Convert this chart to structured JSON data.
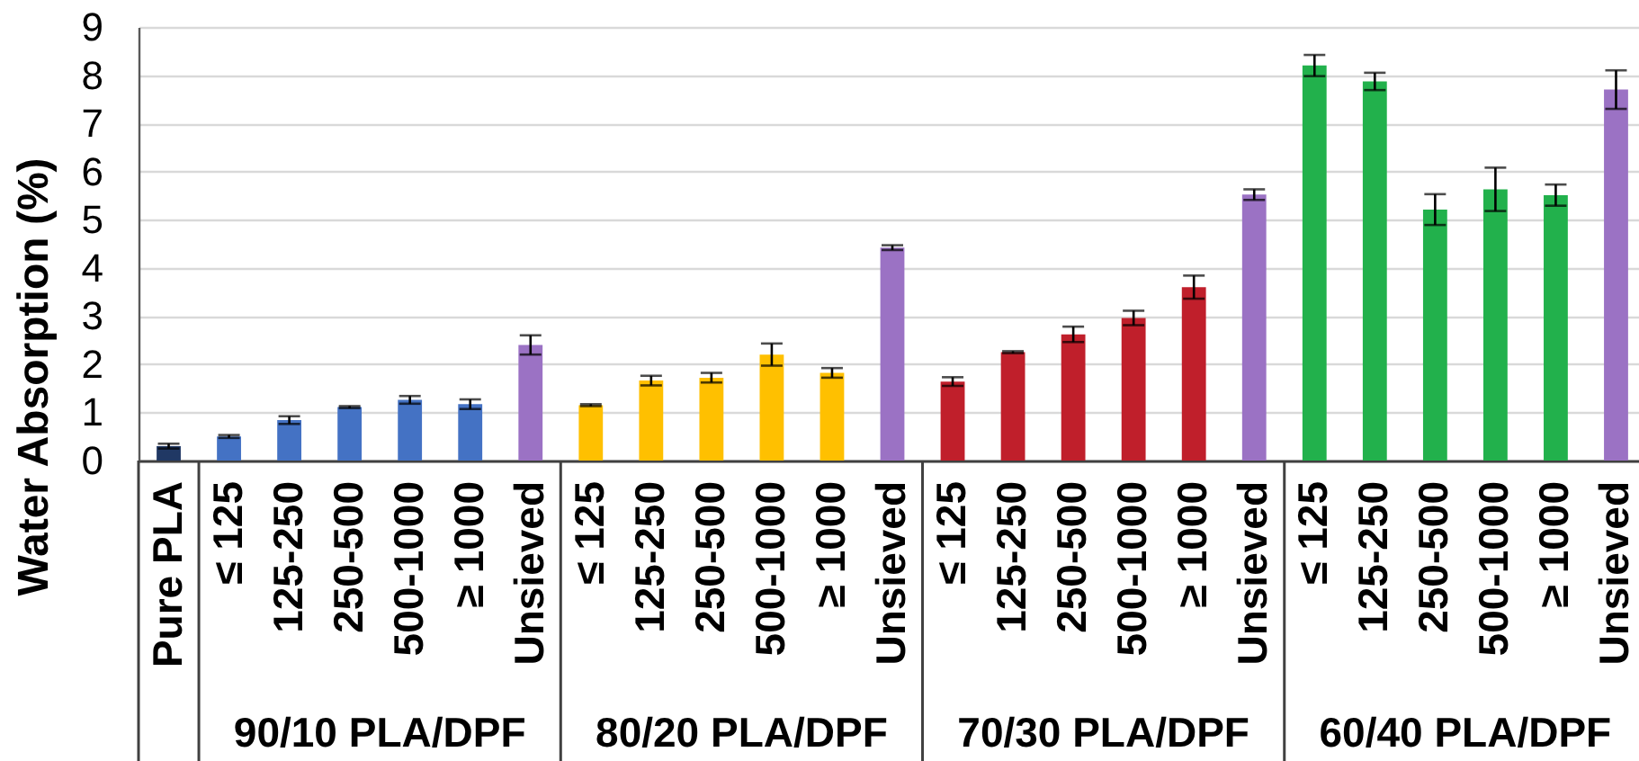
{
  "chart_data": {
    "type": "bar",
    "ylabel": "Water Absorption (%)",
    "categories": [
      "Pure PLA",
      "≤ 125",
      "125-250",
      "250-500",
      "500-1000",
      "≥ 1000",
      "Unsieved",
      "≤ 125",
      "125-250",
      "250-500",
      "500-1000",
      "≥ 1000",
      "Unsieved",
      "≤ 125",
      "125-250",
      "250-500",
      "500-1000",
      "≥ 1000",
      "Unsieved",
      "≤ 125",
      "125-250",
      "250-500",
      "500-1000",
      "≥ 1000",
      "Unsieved"
    ],
    "values": [
      0.3,
      0.5,
      0.84,
      1.11,
      1.26,
      1.17,
      2.4,
      1.15,
      1.66,
      1.72,
      2.2,
      1.82,
      4.42,
      1.64,
      2.25,
      2.62,
      2.96,
      3.6,
      5.52,
      8.2,
      7.87,
      5.21,
      5.63,
      5.51,
      7.7
    ],
    "errors": [
      0.05,
      0.03,
      0.08,
      0.02,
      0.08,
      0.1,
      0.2,
      0.02,
      0.1,
      0.1,
      0.23,
      0.1,
      0.05,
      0.09,
      0.02,
      0.16,
      0.15,
      0.24,
      0.11,
      0.22,
      0.18,
      0.32,
      0.45,
      0.22,
      0.4
    ],
    "colors": [
      "#203864",
      "#4472c4",
      "#4472c4",
      "#4472c4",
      "#4472c4",
      "#4472c4",
      "#9b72c4",
      "#ffc000",
      "#ffc000",
      "#ffc000",
      "#ffc000",
      "#ffc000",
      "#9b72c4",
      "#c01f2b",
      "#c01f2b",
      "#c01f2b",
      "#c01f2b",
      "#c01f2b",
      "#9b72c4",
      "#22b14c",
      "#22b14c",
      "#22b14c",
      "#22b14c",
      "#22b14c",
      "#9b72c4"
    ],
    "ylim": [
      0,
      9
    ],
    "yticks": [
      0,
      1,
      2,
      3,
      4,
      5,
      6,
      7,
      8,
      9
    ],
    "grid": "y",
    "annotations": [
      "90/10 PLA/DPF",
      "80/20 PLA/DPF",
      "70/30 PLA/DPF",
      "60/40 PLA/DPF"
    ]
  }
}
